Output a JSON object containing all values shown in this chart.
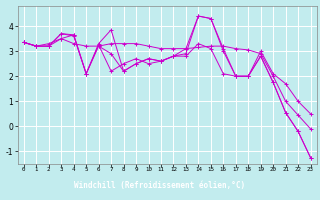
{
  "xlabel": "Windchill (Refroidissement éolien,°C)",
  "background_color": "#c2ecee",
  "line_color": "#cc00cc",
  "grid_color": "#ffffff",
  "xlabel_bg": "#4444aa",
  "xlabel_fg": "#ffffff",
  "ylim": [
    -1.5,
    4.8
  ],
  "xlim": [
    -0.5,
    23.5
  ],
  "yticks": [
    -1,
    0,
    1,
    2,
    3,
    4
  ],
  "xticks": [
    0,
    1,
    2,
    3,
    4,
    5,
    6,
    7,
    8,
    9,
    10,
    11,
    12,
    13,
    14,
    15,
    16,
    17,
    18,
    19,
    20,
    21,
    22,
    23
  ],
  "series": [
    [
      3.35,
      3.2,
      3.2,
      3.7,
      3.6,
      2.1,
      3.2,
      2.9,
      2.2,
      2.5,
      2.7,
      2.6,
      2.8,
      2.8,
      3.3,
      3.1,
      2.1,
      2.0,
      2.0,
      2.8,
      1.75,
      0.55,
      -0.2,
      -1.25
    ],
    [
      3.35,
      3.2,
      3.3,
      3.5,
      3.3,
      3.2,
      3.2,
      3.3,
      3.3,
      3.3,
      3.2,
      3.1,
      3.1,
      3.1,
      3.15,
      3.2,
      3.2,
      3.1,
      3.05,
      2.9,
      2.0,
      1.0,
      0.45,
      -0.1
    ],
    [
      3.35,
      3.2,
      3.2,
      3.5,
      3.65,
      2.1,
      3.25,
      2.2,
      2.5,
      2.7,
      2.5,
      2.6,
      2.8,
      2.9,
      4.4,
      4.3,
      3.1,
      2.0,
      2.0,
      3.0,
      2.1,
      1.7,
      1.0,
      0.5
    ],
    [
      3.35,
      3.2,
      3.2,
      3.7,
      3.65,
      2.1,
      3.3,
      3.85,
      2.2,
      2.5,
      2.7,
      2.6,
      2.8,
      3.1,
      4.4,
      4.3,
      3.0,
      2.0,
      2.0,
      2.8,
      1.75,
      0.55,
      -0.2,
      -1.25
    ]
  ]
}
